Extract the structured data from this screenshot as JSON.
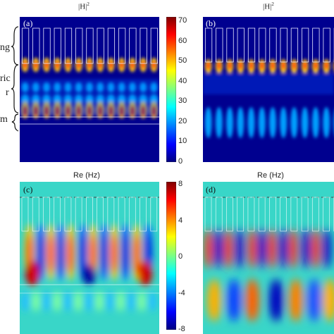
{
  "side_labels": [
    "ng",
    "ric",
    "r",
    "m"
  ],
  "chart_data": [
    {
      "type": "heatmap",
      "panel_label": "(a)",
      "title_main": "|H|",
      "title_sup": "2",
      "quantity": "|H|^2",
      "structure": {
        "grating_periods": 13
      },
      "colorbar": {
        "range": [
          0,
          70
        ],
        "ticks": [
          "70",
          "60",
          "50",
          "40",
          "30",
          "20",
          "10",
          "0"
        ],
        "colormap": "jet"
      }
    },
    {
      "type": "heatmap",
      "panel_label": "(b)",
      "title_main": "|H|",
      "title_sup": "2",
      "quantity": "|H|^2",
      "structure": {
        "grating_periods": 13
      }
    },
    {
      "type": "heatmap",
      "panel_label": "(c)",
      "title": "Re (Hz)",
      "quantity": "Re(Hz)",
      "colorbar": {
        "range": [
          -8,
          8
        ],
        "ticks": [
          "8",
          "4",
          "0",
          "-4",
          "-8"
        ],
        "colormap": "jet"
      }
    },
    {
      "type": "heatmap",
      "panel_label": "(d)",
      "title": "Re (Hz)",
      "quantity": "Re(Hz)"
    }
  ]
}
